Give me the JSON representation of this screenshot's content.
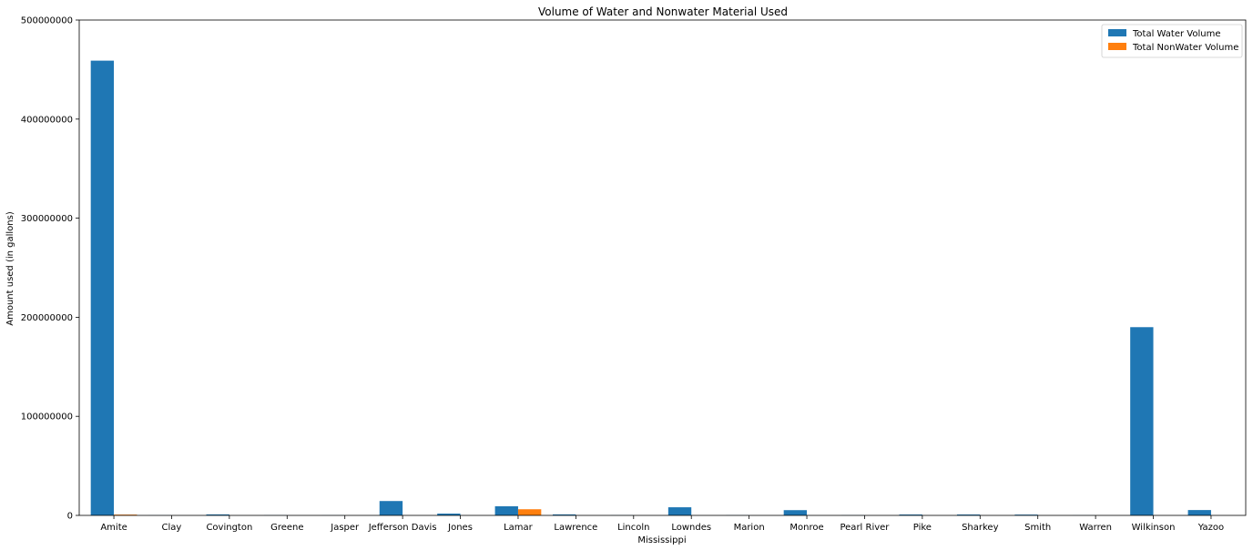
{
  "chart_data": {
    "type": "bar",
    "title": "Volume of Water and Nonwater Material Used",
    "xlabel": "Mississippi",
    "ylabel": "Amount used (in gallons)",
    "ylim": [
      0,
      500000000
    ],
    "yticks": [
      "0",
      "100000000",
      "200000000",
      "300000000",
      "400000000",
      "500000000"
    ],
    "ytick_values": [
      0,
      100000000,
      200000000,
      300000000,
      400000000,
      500000000
    ],
    "grid": false,
    "legend_position": "top-right",
    "categories": [
      "Amite",
      "Clay",
      "Covington",
      "Greene",
      "Jasper",
      "Jefferson Davis",
      "Jones",
      "Lamar",
      "Lawrence",
      "Lincoln",
      "Lowndes",
      "Marion",
      "Monroe",
      "Pearl River",
      "Pike",
      "Sharkey",
      "Smith",
      "Warren",
      "Wilkinson",
      "Yazoo"
    ],
    "series": [
      {
        "name": "Total Water Volume",
        "color": "#1f77b4",
        "values": [
          459000000,
          100000,
          1000000,
          200000,
          100000,
          14500000,
          1800000,
          9200000,
          1000000,
          200000,
          8200000,
          200000,
          5300000,
          200000,
          900000,
          900000,
          800000,
          100000,
          190000000,
          5400000
        ]
      },
      {
        "name": "Total NonWater Volume",
        "color": "#ff7f0e",
        "values": [
          800000,
          0,
          0,
          0,
          0,
          0,
          0,
          6200000,
          0,
          0,
          0,
          0,
          0,
          0,
          0,
          0,
          0,
          0,
          0,
          0
        ]
      }
    ]
  }
}
